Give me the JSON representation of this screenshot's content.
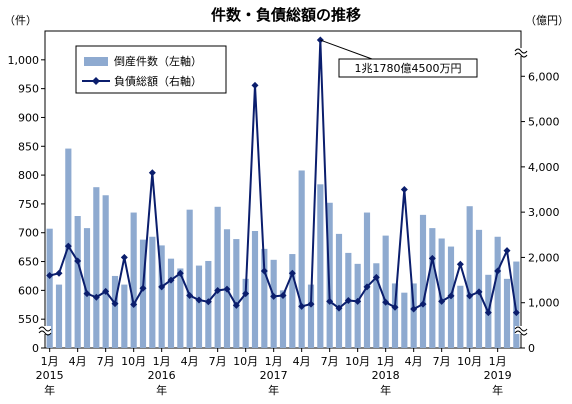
{
  "chart_data": {
    "type": "bar",
    "title": "件数・負債総額の推移",
    "yleft_unit": "（件）",
    "yright_unit": "（億円）",
    "yleft_ticks": [
      "0",
      "550",
      "600",
      "650",
      "700",
      "750",
      "800",
      "850",
      "900",
      "950",
      "1,000"
    ],
    "yleft_range": [
      500,
      1050
    ],
    "yright_ticks": [
      "0",
      "1,000",
      "2,000",
      "3,000",
      "4,000",
      "5,000",
      "6,000"
    ],
    "yright_range": [
      0,
      7000
    ],
    "x_tick_labels": [
      "1月",
      "4月",
      "7月",
      "10月",
      "1月",
      "4月",
      "7月",
      "10月",
      "1月",
      "4月",
      "7月",
      "10月",
      "1月",
      "4月",
      "7月",
      "10月",
      "1月"
    ],
    "x_tick_month_index": [
      0,
      3,
      6,
      9,
      12,
      15,
      18,
      21,
      24,
      27,
      30,
      33,
      36,
      39,
      42,
      45,
      48
    ],
    "year_labels": [
      {
        "index": 0,
        "year": "2015",
        "suffix": "年"
      },
      {
        "index": 12,
        "year": "2016",
        "suffix": "年"
      },
      {
        "index": 24,
        "year": "2017",
        "suffix": "年"
      },
      {
        "index": 36,
        "year": "2018",
        "suffix": "年"
      },
      {
        "index": 48,
        "year": "2019",
        "suffix": "年"
      }
    ],
    "categories": [
      "2015-01",
      "2015-02",
      "2015-03",
      "2015-04",
      "2015-05",
      "2015-06",
      "2015-07",
      "2015-08",
      "2015-09",
      "2015-10",
      "2015-11",
      "2015-12",
      "2016-01",
      "2016-02",
      "2016-03",
      "2016-04",
      "2016-05",
      "2016-06",
      "2016-07",
      "2016-08",
      "2016-09",
      "2016-10",
      "2016-11",
      "2016-12",
      "2017-01",
      "2017-02",
      "2017-03",
      "2017-04",
      "2017-05",
      "2017-06",
      "2017-07",
      "2017-08",
      "2017-09",
      "2017-10",
      "2017-11",
      "2017-12",
      "2018-01",
      "2018-02",
      "2018-03",
      "2018-04",
      "2018-05",
      "2018-06",
      "2018-07",
      "2018-08",
      "2018-09",
      "2018-10",
      "2018-11",
      "2018-12",
      "2019-01",
      "2019-02",
      "2019-03"
    ],
    "series": [
      {
        "name": "倒産件数（左軸）",
        "type": "bar",
        "axis": "left",
        "color": "#8eaad0",
        "values": [
          707,
          610,
          846,
          729,
          708,
          779,
          765,
          625,
          610,
          735,
          688,
          693,
          678,
          655,
          638,
          740,
          643,
          651,
          745,
          706,
          689,
          620,
          703,
          672,
          653,
          600,
          663,
          808,
          610,
          784,
          752,
          698,
          665,
          646,
          735,
          647,
          695,
          612,
          596,
          612,
          731,
          708,
          690,
          676,
          608,
          746,
          705,
          627,
          693,
          620,
          650
        ]
      },
      {
        "name": "負債総額（右軸）",
        "type": "line",
        "axis": "right",
        "color": "#0b1e6d",
        "values": [
          1600,
          1650,
          2250,
          1920,
          1200,
          1120,
          1250,
          980,
          2000,
          960,
          1320,
          3870,
          1350,
          1500,
          1650,
          1160,
          1060,
          1020,
          1270,
          1300,
          940,
          1200,
          5800,
          1700,
          1140,
          1160,
          1650,
          920,
          970,
          6800,
          1030,
          880,
          1050,
          1030,
          1350,
          1560,
          1010,
          900,
          3500,
          860,
          970,
          1980,
          1030,
          1150,
          1850,
          1150,
          1240,
          780,
          1700,
          2150,
          780
        ]
      }
    ],
    "legend": {
      "position": "top-left"
    },
    "annotation": {
      "text": "1兆1780億4500万円",
      "target_index": 29
    },
    "axis_breaks": "left and right axes broken near the bottom (between 0 and the first tick) and right axis broken at the 2017-06 peak"
  }
}
